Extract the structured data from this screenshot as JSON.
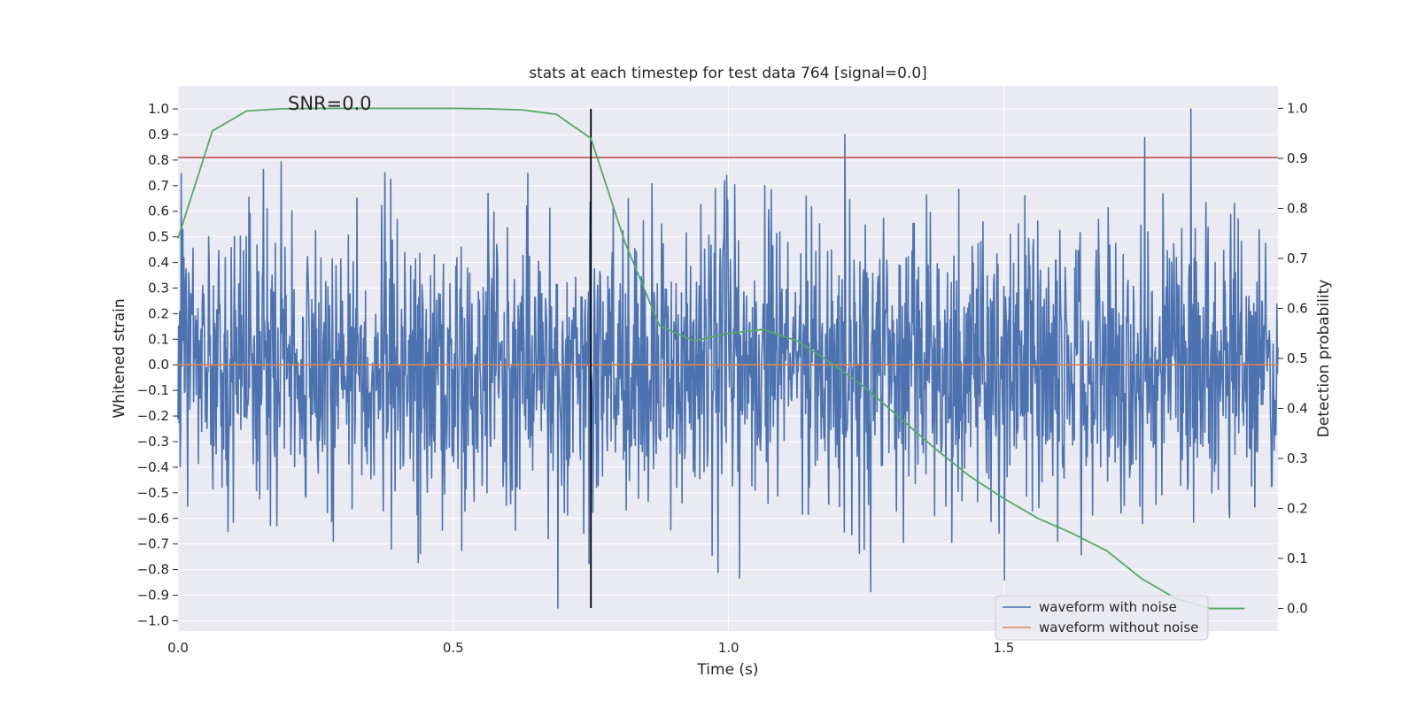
{
  "chart_data": {
    "type": "line",
    "title": "stats at each timestep for test data 764 [signal=0.0]",
    "xlabel": "Time (s)",
    "ylabel_left": "Whitened strain",
    "ylabel_right": "Detection probability",
    "xlim": [
      0.0,
      1.998
    ],
    "ylim_left": [
      -1.04,
      1.09
    ],
    "ylim_right": [
      -0.045,
      1.045
    ],
    "x_ticks": [
      0.0,
      0.5,
      1.0,
      1.5
    ],
    "x_tick_labels": [
      "0.0",
      "0.5",
      "1.0",
      "1.5"
    ],
    "y_left_ticks": [
      1.0,
      0.9,
      0.8,
      0.7,
      0.6,
      0.5,
      0.4,
      0.3,
      0.2,
      0.1,
      0.0,
      -0.1,
      -0.2,
      -0.3,
      -0.4,
      -0.5,
      -0.6,
      -0.7,
      -0.8,
      -0.9,
      -1.0
    ],
    "y_left_tick_labels": [
      "1.0",
      "0.9",
      "0.8",
      "0.7",
      "0.6",
      "0.5",
      "0.4",
      "0.3",
      "0.2",
      "0.1",
      "0.0",
      "−0.1",
      "−0.2",
      "−0.3",
      "−0.4",
      "−0.5",
      "−0.6",
      "−0.7",
      "−0.8",
      "−0.9",
      "−1.0"
    ],
    "y_right_ticks": [
      1.0,
      0.9,
      0.8,
      0.7,
      0.6,
      0.5,
      0.4,
      0.3,
      0.2,
      0.1,
      0.0
    ],
    "y_right_tick_labels": [
      "1.0",
      "0.9",
      "0.8",
      "0.7",
      "0.6",
      "0.5",
      "0.4",
      "0.3",
      "0.2",
      "0.1",
      "0.0"
    ],
    "grid": true,
    "legend_position": "lower-right",
    "annotation": "SNR=0.0",
    "series": [
      {
        "name": "waveform with noise",
        "axis": "left",
        "color": "#4c72b0",
        "note": "dense noise trace, ~2000 samples between about -0.95 and 1.0; rendered as pseudo-random noise",
        "sample_count": 2048,
        "peak_max": 1.0,
        "peak_max_time": 1.84,
        "peak_min": -0.95,
        "peak_min_time": 0.69
      },
      {
        "name": "waveform without noise",
        "axis": "left",
        "color": "#dd8452",
        "x": [
          0.0,
          1.998
        ],
        "y": [
          0.0,
          0.0
        ]
      },
      {
        "axis": "right",
        "color": "#55a868",
        "x": [
          0.0,
          0.0625,
          0.125,
          0.1875,
          0.25,
          0.3125,
          0.375,
          0.4375,
          0.5,
          0.5625,
          0.625,
          0.6875,
          0.75,
          0.8125,
          0.875,
          0.9375,
          1.0,
          1.0625,
          1.125,
          1.1875,
          1.25,
          1.3125,
          1.375,
          1.4375,
          1.5,
          1.5625,
          1.625,
          1.6875,
          1.75,
          1.8125,
          1.875,
          1.9375
        ],
        "y": [
          0.74,
          0.955,
          0.995,
          0.999,
          1.0,
          1.0,
          1.0,
          1.0,
          1.0,
          0.999,
          0.997,
          0.988,
          0.94,
          0.73,
          0.565,
          0.535,
          0.55,
          0.558,
          0.535,
          0.49,
          0.44,
          0.38,
          0.32,
          0.265,
          0.22,
          0.18,
          0.15,
          0.115,
          0.06,
          0.02,
          0.0,
          0.0
        ]
      }
    ],
    "reference_lines": [
      {
        "orientation": "horizontal",
        "axis": "left",
        "value": 0.81,
        "color": "#c44e52"
      },
      {
        "orientation": "vertical",
        "value": 0.75,
        "y_from": -0.95,
        "y_to": 1.0,
        "color": "#000000"
      }
    ]
  }
}
